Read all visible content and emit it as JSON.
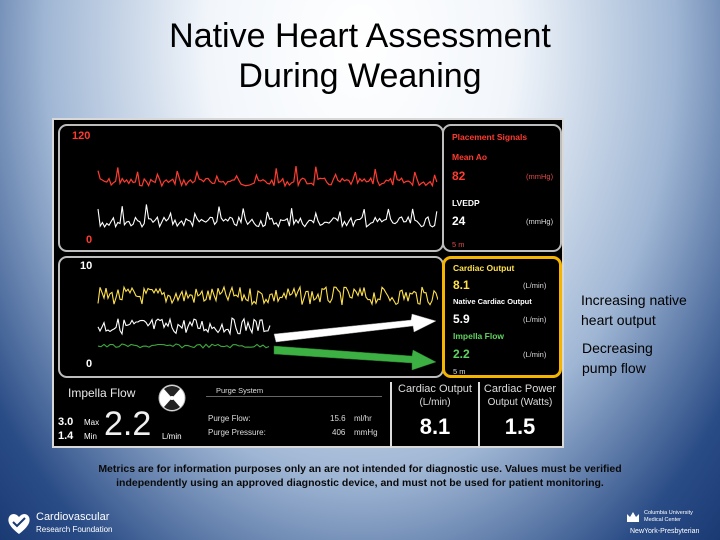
{
  "slide": {
    "title_line1": "Native Heart Assessment",
    "title_line2": "During Weaning"
  },
  "monitor": {
    "panel1": {
      "scale_max": "120",
      "scale_min": "0"
    },
    "panel2": {
      "scale_max": "10",
      "scale_min": "0"
    },
    "placement_signals": {
      "header": "Placement Signals",
      "mean_ao_label": "Mean Ao",
      "mean_ao_value": "82",
      "mean_ao_unit": "(mmHg)",
      "lvedp_label": "LVEDP",
      "lvedp_value": "24",
      "lvedp_unit": "(mmHg)",
      "time": "5 m"
    },
    "cardiac": {
      "header": "Cardiac Output",
      "co_value": "8.1",
      "co_unit": "(L/min)",
      "native_label": "Native Cardiac Output",
      "native_value": "5.9",
      "native_unit": "(L/min)",
      "impella_label": "Impella Flow",
      "impella_value": "2.2",
      "impella_unit": "(L/min)",
      "time": "5 m"
    },
    "bottom": {
      "impella_flow_label": "Impella Flow",
      "max_value": "3.0",
      "max_label": "Max",
      "min_value": "1.4",
      "min_label": "Min",
      "flow_value": "2.2",
      "flow_unit": "L/min",
      "purge_system_label": "Purge System",
      "purge_flow_label": "Purge Flow:",
      "purge_flow_value": "15.6",
      "purge_flow_unit": "ml/hr",
      "purge_pressure_label": "Purge Pressure:",
      "purge_pressure_value": "406",
      "purge_pressure_unit": "mmHg",
      "cardiac_output_label": "Cardiac Output",
      "cardiac_output_unit": "(L/min)",
      "cardiac_output_value": "8.1",
      "cardiac_power_label": "Cardiac Power",
      "cardiac_power_unit": "Output (Watts)",
      "cardiac_power_value": "1.5"
    },
    "colors": {
      "red": "#ff3b30",
      "yellow": "#ffe14a",
      "green": "#5fd35f",
      "highlight": "#f4b400"
    }
  },
  "annotations": {
    "increasing_line1": "Increasing native",
    "increasing_line2": "heart output",
    "decreasing_line1": "Decreasing",
    "decreasing_line2": "pump flow"
  },
  "disclaimer": {
    "line1": "Metrics are for information purposes only an are not intended for diagnostic use. Values must be verified",
    "line2": "independently using an approved diagnostic device, and must not be used for patient monitoring."
  },
  "footer": {
    "left_logo_line1": "Cardiovascular",
    "left_logo_line2": "Research Foundation",
    "right_logo_line1": "Columbia University",
    "right_logo_line2": "Medical Center",
    "right_logo_line3": "NewYork-Presbyterian"
  }
}
